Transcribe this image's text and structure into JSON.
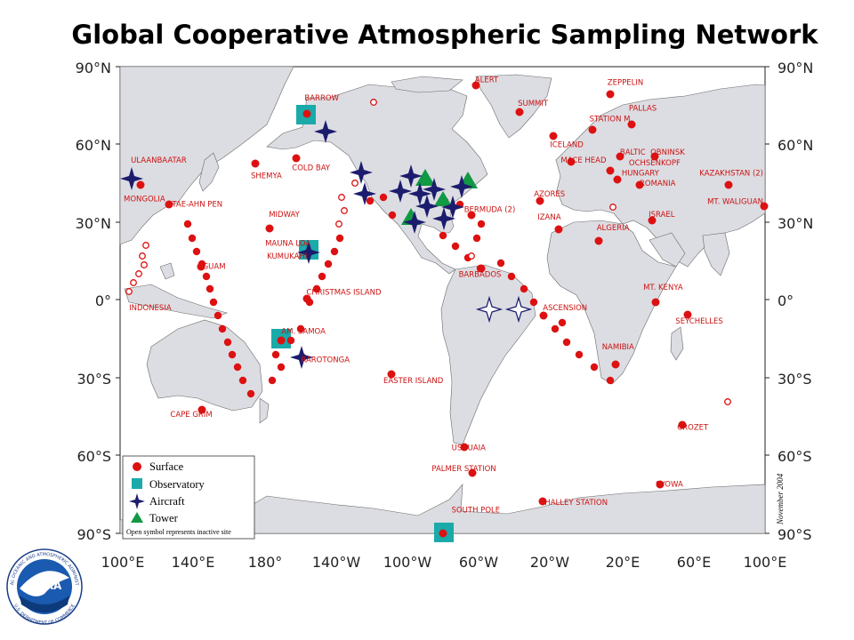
{
  "title": "Global Cooperative Atmospheric Sampling Network",
  "axes": {
    "lat_left": [
      "90°N",
      "60°N",
      "30°N",
      "0°",
      "30°S",
      "60°S",
      "90°S"
    ],
    "lat_right": [
      "90°N",
      "60°N",
      "30°N",
      "0°",
      "30°S",
      "60°S",
      "90°S"
    ],
    "lon_bottom": [
      "100°E",
      "140°E",
      "180°",
      "140°W",
      "100°W",
      "60°W",
      "20°W",
      "20°E",
      "60°E",
      "100°E"
    ]
  },
  "legend": {
    "items": [
      {
        "label": "Surface",
        "symbol": "circle",
        "color": "#dd1111"
      },
      {
        "label": "Observatory",
        "symbol": "square",
        "color": "#1aaaaa"
      },
      {
        "label": "Aircraft",
        "symbol": "star",
        "color": "#1c1c6e"
      },
      {
        "label": "Tower",
        "symbol": "triangle",
        "color": "#119944"
      }
    ],
    "note": "Open symbol represents inactive site"
  },
  "date_stamp": "November 2004",
  "logo": {
    "text": "NOAA",
    "ring_top": "NATIONAL OCEANIC AND ATMOSPHERIC ADMINISTRATION",
    "ring_bottom": "U.S. DEPARTMENT OF COMMERCE"
  },
  "colors": {
    "land": "#dcdde2",
    "ocean": "#ffffff",
    "surface": "#dd1111",
    "observatory": "#1aaaaa",
    "aircraft": "#1c1c6e",
    "tower": "#119944"
  },
  "site_labels": [
    {
      "text": "ALERT",
      "lon": -62,
      "lat": 84
    },
    {
      "text": "BARROW",
      "lon": -157,
      "lat": 77
    },
    {
      "text": "ZEPPELIN",
      "lon": 12,
      "lat": 83
    },
    {
      "text": "SUMMIT",
      "lon": -38,
      "lat": 75
    },
    {
      "text": "PALLAS",
      "lon": 24,
      "lat": 73
    },
    {
      "text": "STATION M",
      "lon": 2,
      "lat": 69
    },
    {
      "text": "ICELAND",
      "lon": -20,
      "lat": 59
    },
    {
      "text": "MACE HEAD",
      "lon": -14,
      "lat": 53
    },
    {
      "text": "BALTIC",
      "lon": 19,
      "lat": 56
    },
    {
      "text": "OBNINSK",
      "lon": 36,
      "lat": 56
    },
    {
      "text": "OCHSENKOPF",
      "lon": 24,
      "lat": 52
    },
    {
      "text": "HUNGARY",
      "lon": 20,
      "lat": 48
    },
    {
      "text": "ROMANIA",
      "lon": 30,
      "lat": 44
    },
    {
      "text": "KAZAKHSTAN (2)",
      "lon": 78,
      "lat": 48
    },
    {
      "text": "MT. WALIGUAN",
      "lon": 86,
      "lat": 37
    },
    {
      "text": "ULAANBAATAR",
      "lon": 106,
      "lat": 53
    },
    {
      "text": "MONGOLIA",
      "lon": 102,
      "lat": 38
    },
    {
      "text": "TAE-AHN PEN",
      "lon": 129,
      "lat": 36
    },
    {
      "text": "SHEMYA",
      "lon": 173,
      "lat": 47
    },
    {
      "text": "COLD BAY",
      "lon": -164,
      "lat": 50
    },
    {
      "text": "MIDWAY",
      "lon": -177,
      "lat": 32
    },
    {
      "text": "MAUNA LOA",
      "lon": -179,
      "lat": 21
    },
    {
      "text": "KUMUKAHI",
      "lon": -178,
      "lat": 16
    },
    {
      "text": "GUAM",
      "lon": 146,
      "lat": 12
    },
    {
      "text": "CHRISTMAS ISLAND",
      "lon": -156,
      "lat": 2
    },
    {
      "text": "INDONESIA",
      "lon": 105,
      "lat": -4
    },
    {
      "text": "AM. SAMOA",
      "lon": -170,
      "lat": -13
    },
    {
      "text": "RAROTONGA",
      "lon": -159,
      "lat": -24
    },
    {
      "text": "EASTER ISLAND",
      "lon": -113,
      "lat": -32
    },
    {
      "text": "CAPE GRIM",
      "lon": 128,
      "lat": -45
    },
    {
      "text": "AZORES",
      "lon": -29,
      "lat": 40
    },
    {
      "text": "BERMUDA (2)",
      "lon": -68,
      "lat": 34
    },
    {
      "text": "IZANA",
      "lon": -27,
      "lat": 31
    },
    {
      "text": "ALGERIA",
      "lon": 6,
      "lat": 27
    },
    {
      "text": "ISRAEL",
      "lon": 35,
      "lat": 32
    },
    {
      "text": "BARBADOS",
      "lon": -71,
      "lat": 9
    },
    {
      "text": "MT. KENYA",
      "lon": 32,
      "lat": 4
    },
    {
      "text": "ASCENSION",
      "lon": -24,
      "lat": -4
    },
    {
      "text": "SEYCHELLES",
      "lon": 50,
      "lat": -9
    },
    {
      "text": "NAMIBIA",
      "lon": 9,
      "lat": -19
    },
    {
      "text": "CROZET",
      "lon": 51,
      "lat": -50
    },
    {
      "text": "USHUAIA",
      "lon": -75,
      "lat": -58
    },
    {
      "text": "PALMER STATION",
      "lon": -86,
      "lat": -66
    },
    {
      "text": "SYOWA",
      "lon": 39,
      "lat": -72
    },
    {
      "text": "HALLEY STATION",
      "lon": -23,
      "lat": -79
    },
    {
      "text": "SOUTH POLE",
      "lon": -75,
      "lat": -82
    }
  ]
}
